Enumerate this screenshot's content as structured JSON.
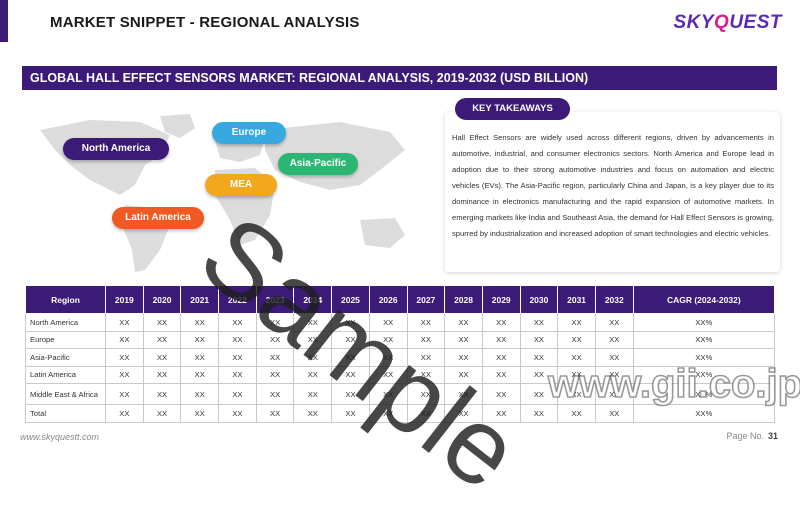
{
  "header": {
    "title": "MARKET SNIPPET - REGIONAL ANALYSIS",
    "logo_prefix": "SKY",
    "logo_q": "Q",
    "logo_suffix": "UEST"
  },
  "banner": {
    "title": "GLOBAL HALL EFFECT SENSORS MARKET: REGIONAL ANALYSIS, 2019-2032 (USD BILLION)"
  },
  "map": {
    "regions": [
      {
        "label": "North America",
        "color": "#3b1a78"
      },
      {
        "label": "Europe",
        "color": "#35a9e0"
      },
      {
        "label": "Asia-Pacific",
        "color": "#2bb673"
      },
      {
        "label": "MEA",
        "color": "#f2a81d"
      },
      {
        "label": "Latin America",
        "color": "#ef5a24"
      }
    ]
  },
  "takeaways": {
    "label": "KEY TAKEAWAYS",
    "text": "Hall Effect Sensors are widely used across different regions, driven by advancements in automotive, industrial, and consumer electronics sectors. North America and Europe lead in adoption due to their strong automotive industries and focus on automation and electric vehicles (EVs). The Asia-Pacific region, particularly China and Japan, is a key player due to its dominance in electronics manufacturing and the rapid expansion of automotive markets. In emerging markets like India and Southeast Asia, the demand for Hall Effect Sensors is growing, spurred by industrialization and increased adoption of smart technologies and electric vehicles."
  },
  "table": {
    "headers": [
      "Region",
      "2019",
      "2020",
      "2021",
      "2022",
      "2023",
      "2024",
      "2025",
      "2026",
      "2027",
      "2028",
      "2029",
      "2030",
      "2031",
      "2032",
      "CAGR (2024-2032)"
    ],
    "rows": [
      {
        "region": "North America",
        "values": [
          "XX",
          "XX",
          "XX",
          "XX",
          "XX",
          "XX",
          "XX",
          "XX",
          "XX",
          "XX",
          "XX",
          "XX",
          "XX",
          "XX",
          "XX%"
        ]
      },
      {
        "region": "Europe",
        "values": [
          "XX",
          "XX",
          "XX",
          "XX",
          "XX",
          "XX",
          "XX",
          "XX",
          "XX",
          "XX",
          "XX",
          "XX",
          "XX",
          "XX",
          "XX%"
        ]
      },
      {
        "region": "Asia-Pacific",
        "values": [
          "XX",
          "XX",
          "XX",
          "XX",
          "XX",
          "XX",
          "XX",
          "XX",
          "XX",
          "XX",
          "XX",
          "XX",
          "XX",
          "XX",
          "XX%"
        ]
      },
      {
        "region": "Latin America",
        "values": [
          "XX",
          "XX",
          "XX",
          "XX",
          "XX",
          "XX",
          "XX",
          "XX",
          "XX",
          "XX",
          "XX",
          "XX",
          "XX",
          "XX",
          "XX%"
        ]
      },
      {
        "region": "Middle East & Africa",
        "values": [
          "XX",
          "XX",
          "XX",
          "XX",
          "XX",
          "XX",
          "XX",
          "XX",
          "XX",
          "XX",
          "XX",
          "XX",
          "XX",
          "XX",
          "XX%"
        ]
      },
      {
        "region": "Total",
        "values": [
          "XX",
          "XX",
          "XX",
          "XX",
          "XX",
          "XX",
          "XX",
          "XX",
          "XX",
          "XX",
          "XX",
          "XX",
          "XX",
          "XX",
          "XX%"
        ]
      }
    ]
  },
  "footer": {
    "url": "www.skyquestt.com",
    "page_label": "Page No.",
    "page_number": "31"
  },
  "watermarks": {
    "sample": "Sample",
    "gii": "www.gii.co.jp"
  }
}
